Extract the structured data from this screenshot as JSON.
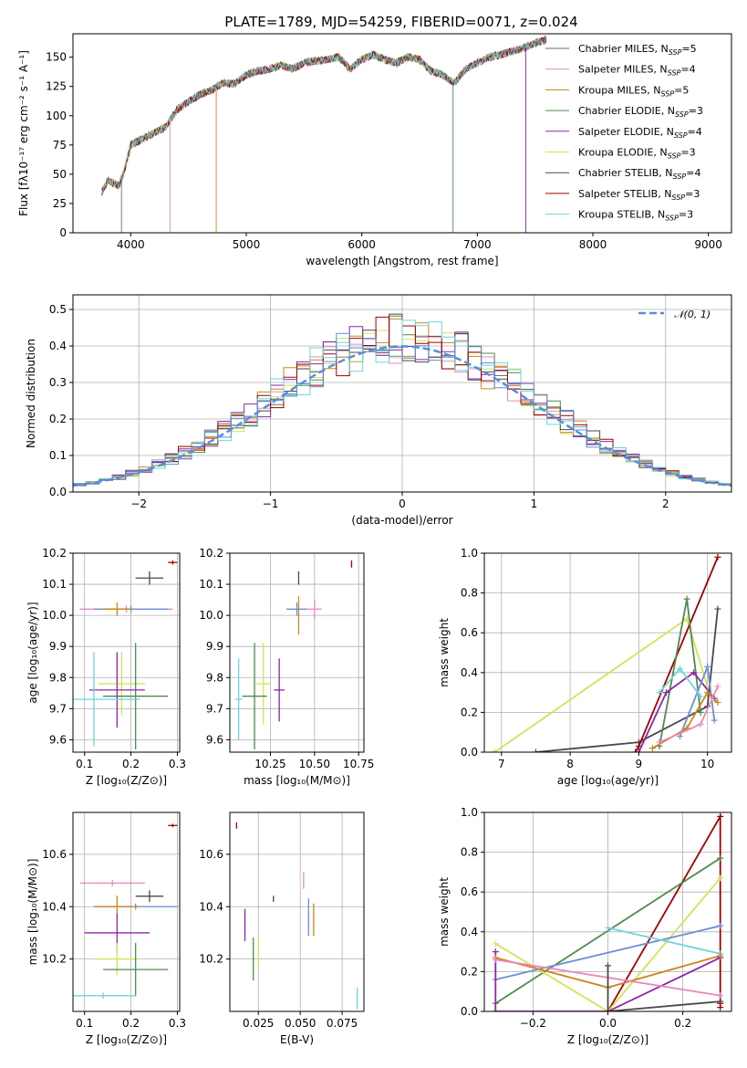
{
  "figure_title": "PLATE=1789, MJD=54259, FIBERID=0071, z=0.024",
  "colors": [
    "#6b6b6b",
    "#e68abd",
    "#c9861b",
    "#4f8a4f",
    "#8e24aa",
    "#d4e157",
    "#4a4a4a",
    "#a00000",
    "#6dd5dc"
  ],
  "chart_data": [
    {
      "id": "spectrum",
      "type": "line",
      "xlabel": "wavelength [Angstrom, rest frame]",
      "ylabel": "Flux [fλ10⁻¹⁷ erg cm⁻² s⁻¹ A⁻¹]",
      "xlim": [
        3500,
        9200
      ],
      "ylim": [
        0,
        170
      ],
      "xticks": [
        4000,
        5000,
        6000,
        7000,
        8000,
        9000
      ],
      "yticks": [
        0,
        25,
        50,
        75,
        100,
        125,
        150
      ],
      "grid": false,
      "legend_position": "upper-right",
      "series": [
        {
          "name": "Chabrier MILES, N_SSP=5",
          "color": "#6b6b6b"
        },
        {
          "name": "Salpeter MILES, N_SSP=4",
          "color": "#e68abd"
        },
        {
          "name": "Kroupa MILES, N_SSP=5",
          "color": "#c9861b"
        },
        {
          "name": "Chabrier ELODIE, N_SSP=3",
          "color": "#4f8a4f"
        },
        {
          "name": "Salpeter ELODIE, N_SSP=4",
          "color": "#8e24aa"
        },
        {
          "name": "Kroupa ELODIE, N_SSP=3",
          "color": "#d4e157"
        },
        {
          "name": "Chabrier STELIB, N_SSP=4",
          "color": "#4a4a4a"
        },
        {
          "name": "Salpeter STELIB, N_SSP=3",
          "color": "#a00000"
        },
        {
          "name": "Kroupa STELIB, N_SSP=3",
          "color": "#6dd5dc"
        }
      ],
      "continuum": {
        "x": [
          3750,
          3800,
          3900,
          3950,
          4000,
          4100,
          4200,
          4300,
          4400,
          4500,
          4600,
          4700,
          4800,
          4900,
          5000,
          5100,
          5200,
          5300,
          5400,
          5500,
          5600,
          5700,
          5800,
          5900,
          6000,
          6100,
          6200,
          6300,
          6400,
          6500,
          6600,
          6700,
          6800,
          6900,
          7000,
          7100,
          7200,
          7300,
          7400,
          7500,
          7600
        ],
        "y": [
          35,
          45,
          40,
          55,
          75,
          80,
          85,
          90,
          105,
          112,
          118,
          122,
          128,
          127,
          135,
          138,
          140,
          143,
          140,
          145,
          147,
          148,
          150,
          140,
          148,
          152,
          148,
          145,
          150,
          148,
          138,
          135,
          128,
          140,
          145,
          150,
          152,
          155,
          158,
          162,
          165
        ]
      },
      "lines": [
        {
          "x": 3920,
          "y": 0
        },
        {
          "x": 4340,
          "y": 0
        },
        {
          "x": 4740,
          "y": 0
        },
        {
          "x": 6790,
          "y": 0
        },
        {
          "x": 7420,
          "y": 0
        }
      ]
    },
    {
      "id": "residuals",
      "type": "histogram",
      "xlabel": "(data-model)/error",
      "ylabel": "Normed distribution",
      "xlim": [
        -2.5,
        2.5
      ],
      "ylim": [
        0,
        0.54
      ],
      "xticks": [
        -2,
        -1,
        0,
        1,
        2
      ],
      "yticks": [
        0.0,
        0.1,
        0.2,
        0.3,
        0.4,
        0.5
      ],
      "grid": true,
      "legend_position": "upper-right",
      "legend": "𝒩(0, 1)",
      "gauss_color": "#5b8dd9"
    },
    {
      "id": "age_vs_Z",
      "type": "scatter",
      "xlabel": "Z [log₁₀(Z/Z⊙)]",
      "ylabel": "age  [log₁₀(age/yr)]",
      "xlim": [
        0.075,
        0.305
      ],
      "ylim": [
        9.56,
        10.2
      ],
      "xticks": [
        0.1,
        0.2,
        0.3
      ],
      "yticks": [
        9.6,
        9.7,
        9.8,
        9.9,
        10.0,
        10.1,
        10.2
      ],
      "grid": true,
      "points": [
        {
          "x": 0.19,
          "y": 10.02,
          "xerr": 0.1,
          "yerr": 0.01,
          "color": "#e68abd"
        },
        {
          "x": 0.24,
          "y": 10.12,
          "xerr": 0.03,
          "yerr": 0.02,
          "color": "#4a4a4a"
        },
        {
          "x": 0.29,
          "y": 10.17,
          "xerr": 0.01,
          "yerr": 0.005,
          "color": "#a00000"
        },
        {
          "x": 0.2,
          "y": 10.02,
          "xerr": 0.08,
          "yerr": 0.01,
          "color": "#6d8fd6"
        },
        {
          "x": 0.17,
          "y": 10.02,
          "xerr": 0.03,
          "yerr": 0.02,
          "color": "#c9861b"
        },
        {
          "x": 0.18,
          "y": 9.78,
          "xerr": 0.05,
          "yerr": 0.1,
          "color": "#d4e157"
        },
        {
          "x": 0.21,
          "y": 9.74,
          "xerr": 0.07,
          "yerr": 0.17,
          "color": "#4f8a4f"
        },
        {
          "x": 0.17,
          "y": 9.76,
          "xerr": 0.06,
          "yerr": 0.12,
          "color": "#8e24aa"
        },
        {
          "x": 0.12,
          "y": 9.73,
          "xerr": 0.1,
          "yerr": 0.15,
          "color": "#6dd5dc"
        }
      ]
    },
    {
      "id": "age_vs_mass",
      "type": "scatter",
      "xlabel": "mass [log₁₀(M/M⊙)]",
      "ylabel": "",
      "xlim": [
        10.02,
        10.78
      ],
      "ylim": [
        9.56,
        10.2
      ],
      "xticks": [
        10.25,
        10.5,
        10.75
      ],
      "yticks": [
        9.6,
        9.7,
        9.8,
        9.9,
        10.0,
        10.1,
        10.2
      ],
      "grid": true,
      "points": [
        {
          "x": 10.41,
          "y": 10.12,
          "xerr": 0.0,
          "yerr": 0.02,
          "color": "#4a4a4a"
        },
        {
          "x": 10.71,
          "y": 10.165,
          "xerr": 0.0,
          "yerr": 0.01,
          "color": "#a00000"
        },
        {
          "x": 10.5,
          "y": 10.02,
          "xerr": 0.04,
          "yerr": 0.03,
          "color": "#e68abd"
        },
        {
          "x": 10.4,
          "y": 10.02,
          "xerr": 0.06,
          "yerr": 0.02,
          "color": "#6d8fd6"
        },
        {
          "x": 10.41,
          "y": 10.0,
          "xerr": 0.0,
          "yerr": 0.06,
          "color": "#c9861b"
        },
        {
          "x": 10.21,
          "y": 9.78,
          "xerr": 0.04,
          "yerr": 0.13,
          "color": "#d4e157"
        },
        {
          "x": 10.16,
          "y": 9.74,
          "xerr": 0.07,
          "yerr": 0.17,
          "color": "#4f8a4f"
        },
        {
          "x": 10.3,
          "y": 9.76,
          "xerr": 0.03,
          "yerr": 0.1,
          "color": "#8e24aa"
        },
        {
          "x": 10.07,
          "y": 9.73,
          "xerr": 0.02,
          "yerr": 0.13,
          "color": "#6dd5dc"
        }
      ]
    },
    {
      "id": "mass_weight_vs_age",
      "type": "line",
      "xlabel": "age  [log₁₀(age/yr)]",
      "ylabel": "mass weight",
      "xlim": [
        6.75,
        10.35
      ],
      "ylim": [
        0,
        1
      ],
      "xticks": [
        7,
        8,
        9,
        10
      ],
      "yticks": [
        0.0,
        0.2,
        0.4,
        0.6,
        0.8,
        1.0
      ],
      "grid": true,
      "series": [
        {
          "color": "#d4e157",
          "x": [
            6.9,
            9.7,
            10.0
          ],
          "y": [
            0.0,
            0.67,
            0.33
          ]
        },
        {
          "color": "#4a4a4a",
          "x": [
            7.5,
            9.0,
            10.0,
            10.15
          ],
          "y": [
            0.0,
            0.05,
            0.23,
            0.72
          ]
        },
        {
          "color": "#a00000",
          "x": [
            8.95,
            9.0,
            10.15
          ],
          "y": [
            0.0,
            0.03,
            0.98
          ]
        },
        {
          "color": "#4f8a4f",
          "x": [
            9.3,
            9.7,
            9.9
          ],
          "y": [
            0.03,
            0.77,
            0.2
          ]
        },
        {
          "color": "#8e24aa",
          "x": [
            9.0,
            9.4,
            9.8,
            10.1
          ],
          "y": [
            0.0,
            0.3,
            0.4,
            0.27
          ]
        },
        {
          "color": "#6d8fd6",
          "x": [
            9.6,
            10.0,
            10.1
          ],
          "y": [
            0.08,
            0.43,
            0.16
          ]
        },
        {
          "color": "#6dd5dc",
          "x": [
            9.3,
            9.6,
            9.9
          ],
          "y": [
            0.3,
            0.42,
            0.28
          ]
        },
        {
          "color": "#c9861b",
          "x": [
            9.2,
            9.7,
            10.0,
            10.15
          ],
          "y": [
            0.02,
            0.12,
            0.3,
            0.25
          ]
        },
        {
          "color": "#e68abd",
          "x": [
            9.3,
            9.9,
            10.15
          ],
          "y": [
            0.05,
            0.14,
            0.33
          ]
        }
      ]
    },
    {
      "id": "mass_vs_Z",
      "type": "scatter",
      "xlabel": "Z [log₁₀(Z/Z⊙)]",
      "ylabel": "mass [log₁₀(M/M⊙)]",
      "xlim": [
        0.075,
        0.305
      ],
      "ylim": [
        10.0,
        10.76
      ],
      "xticks": [
        0.1,
        0.2,
        0.3
      ],
      "yticks": [
        10.2,
        10.4,
        10.6
      ],
      "grid": true,
      "points": [
        {
          "x": 0.29,
          "y": 10.71,
          "xerr": 0.01,
          "yerr": 0.005,
          "color": "#a00000"
        },
        {
          "x": 0.16,
          "y": 10.49,
          "xerr": 0.07,
          "yerr": 0.01,
          "color": "#e68abd"
        },
        {
          "x": 0.24,
          "y": 10.44,
          "xerr": 0.03,
          "yerr": 0.02,
          "color": "#4a4a4a"
        },
        {
          "x": 0.21,
          "y": 10.4,
          "xerr": 0.09,
          "yerr": 0.01,
          "color": "#6d8fd6"
        },
        {
          "x": 0.17,
          "y": 10.4,
          "xerr": 0.05,
          "yerr": 0.04,
          "color": "#c9861b"
        },
        {
          "x": 0.17,
          "y": 10.3,
          "xerr": 0.07,
          "yerr": 0.07,
          "color": "#8e24aa"
        },
        {
          "x": 0.17,
          "y": 10.2,
          "xerr": 0.05,
          "yerr": 0.06,
          "color": "#d4e157"
        },
        {
          "x": 0.21,
          "y": 10.16,
          "xerr": 0.07,
          "yerr": 0.1,
          "color": "#4f8a4f"
        },
        {
          "x": 0.14,
          "y": 10.06,
          "xerr": 0.07,
          "yerr": 0.01,
          "color": "#6dd5dc"
        }
      ]
    },
    {
      "id": "mass_vs_ebv",
      "type": "scatter",
      "xlabel": "E(B-V)",
      "ylabel": "",
      "xlim": [
        0.008,
        0.088
      ],
      "ylim": [
        10.0,
        10.76
      ],
      "xticks": [
        0.025,
        0.05,
        0.075
      ],
      "yticks": [
        10.2,
        10.4,
        10.6
      ],
      "grid": true,
      "points": [
        {
          "x": 0.012,
          "y": 10.71,
          "xerr": 0.0,
          "yerr": 0.01,
          "color": "#a00000"
        },
        {
          "x": 0.052,
          "y": 10.5,
          "xerr": 0.0,
          "yerr": 0.03,
          "color": "#e68abd"
        },
        {
          "x": 0.034,
          "y": 10.43,
          "xerr": 0.0,
          "yerr": 0.01,
          "color": "#4a4a4a"
        },
        {
          "x": 0.055,
          "y": 10.36,
          "xerr": 0.0,
          "yerr": 0.07,
          "color": "#6d8fd6"
        },
        {
          "x": 0.058,
          "y": 10.35,
          "xerr": 0.0,
          "yerr": 0.06,
          "color": "#c9861b"
        },
        {
          "x": 0.017,
          "y": 10.33,
          "xerr": 0.0,
          "yerr": 0.06,
          "color": "#8e24aa"
        },
        {
          "x": 0.022,
          "y": 10.2,
          "xerr": 0.0,
          "yerr": 0.08,
          "color": "#4f8a4f"
        },
        {
          "x": 0.025,
          "y": 10.22,
          "xerr": 0.0,
          "yerr": 0.06,
          "color": "#d4e157"
        },
        {
          "x": 0.084,
          "y": 10.05,
          "xerr": 0.0,
          "yerr": 0.04,
          "color": "#6dd5dc"
        }
      ]
    },
    {
      "id": "mass_weight_vs_Z",
      "type": "line",
      "xlabel": "Z [log₁₀(Z/Z⊙)]",
      "ylabel": "mass weight",
      "xlim": [
        -0.33,
        0.33
      ],
      "ylim": [
        0,
        1
      ],
      "xticks": [
        -0.2,
        0.0,
        0.2
      ],
      "yticks": [
        0.0,
        0.2,
        0.4,
        0.6,
        0.8,
        1.0
      ],
      "grid": true,
      "series": [
        {
          "color": "#a00000",
          "x": [
            0.0,
            0.3,
            0.3,
            0.3
          ],
          "y": [
            0.0,
            0.98,
            0.02,
            0.04
          ]
        },
        {
          "color": "#4f8a4f",
          "x": [
            -0.3,
            0.3
          ],
          "y": [
            0.04,
            0.77
          ]
        },
        {
          "color": "#d4e157",
          "x": [
            -0.3,
            0.0,
            0.3
          ],
          "y": [
            0.34,
            0.0,
            0.67
          ]
        },
        {
          "color": "#6d8fd6",
          "x": [
            -0.3,
            0.3
          ],
          "y": [
            0.16,
            0.43
          ]
        },
        {
          "color": "#6dd5dc",
          "x": [
            0.0,
            0.3
          ],
          "y": [
            0.42,
            0.29
          ]
        },
        {
          "color": "#8e24aa",
          "x": [
            -0.3,
            -0.3,
            0.0,
            0.3
          ],
          "y": [
            0.3,
            0.0,
            0.0,
            0.27
          ]
        },
        {
          "color": "#c9861b",
          "x": [
            -0.3,
            0.0,
            0.3
          ],
          "y": [
            0.27,
            0.12,
            0.28
          ]
        },
        {
          "color": "#e68abd",
          "x": [
            -0.3,
            0.3
          ],
          "y": [
            0.26,
            0.08
          ]
        },
        {
          "color": "#4a4a4a",
          "x": [
            0.0,
            0.0,
            0.3
          ],
          "y": [
            0.23,
            0.0,
            0.05
          ]
        }
      ]
    }
  ]
}
